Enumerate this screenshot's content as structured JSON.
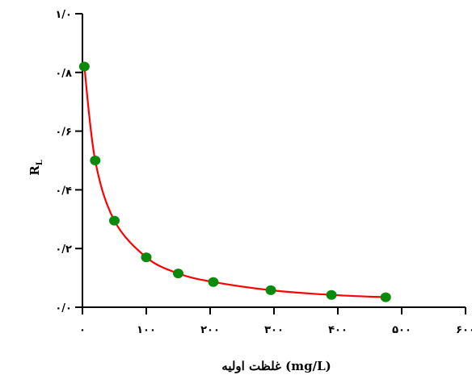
{
  "chart_data": {
    "type": "line",
    "title": "",
    "xlabel": "غلظت اولیه (mg/L)",
    "ylabel_main": "R",
    "ylabel_sub": "L",
    "xlim": [
      0,
      600
    ],
    "ylim": [
      0,
      1
    ],
    "x_ticks": [
      0,
      100,
      200,
      300,
      400,
      500,
      600
    ],
    "x_tick_labels": [
      "۰",
      "۱۰۰",
      "۲۰۰",
      "۳۰۰",
      "۴۰۰",
      "۵۰۰",
      "۶۰۰"
    ],
    "y_ticks": [
      0,
      0.2,
      0.4,
      0.6,
      0.8,
      1.0
    ],
    "y_tick_labels": [
      "۰/۰",
      "۰/۲",
      "۰/۴",
      "۰/۶",
      "۰/۸",
      "۱/۰"
    ],
    "grid": false,
    "series": [
      {
        "x": [
          3,
          20,
          50,
          100,
          150,
          205,
          295,
          390,
          475
        ],
        "y": [
          0.82,
          0.5,
          0.295,
          0.17,
          0.115,
          0.086,
          0.058,
          0.042,
          0.034
        ]
      }
    ],
    "colors": {
      "line": "#ff0000",
      "marker": "#0a8a0a",
      "axis": "#000000"
    }
  }
}
